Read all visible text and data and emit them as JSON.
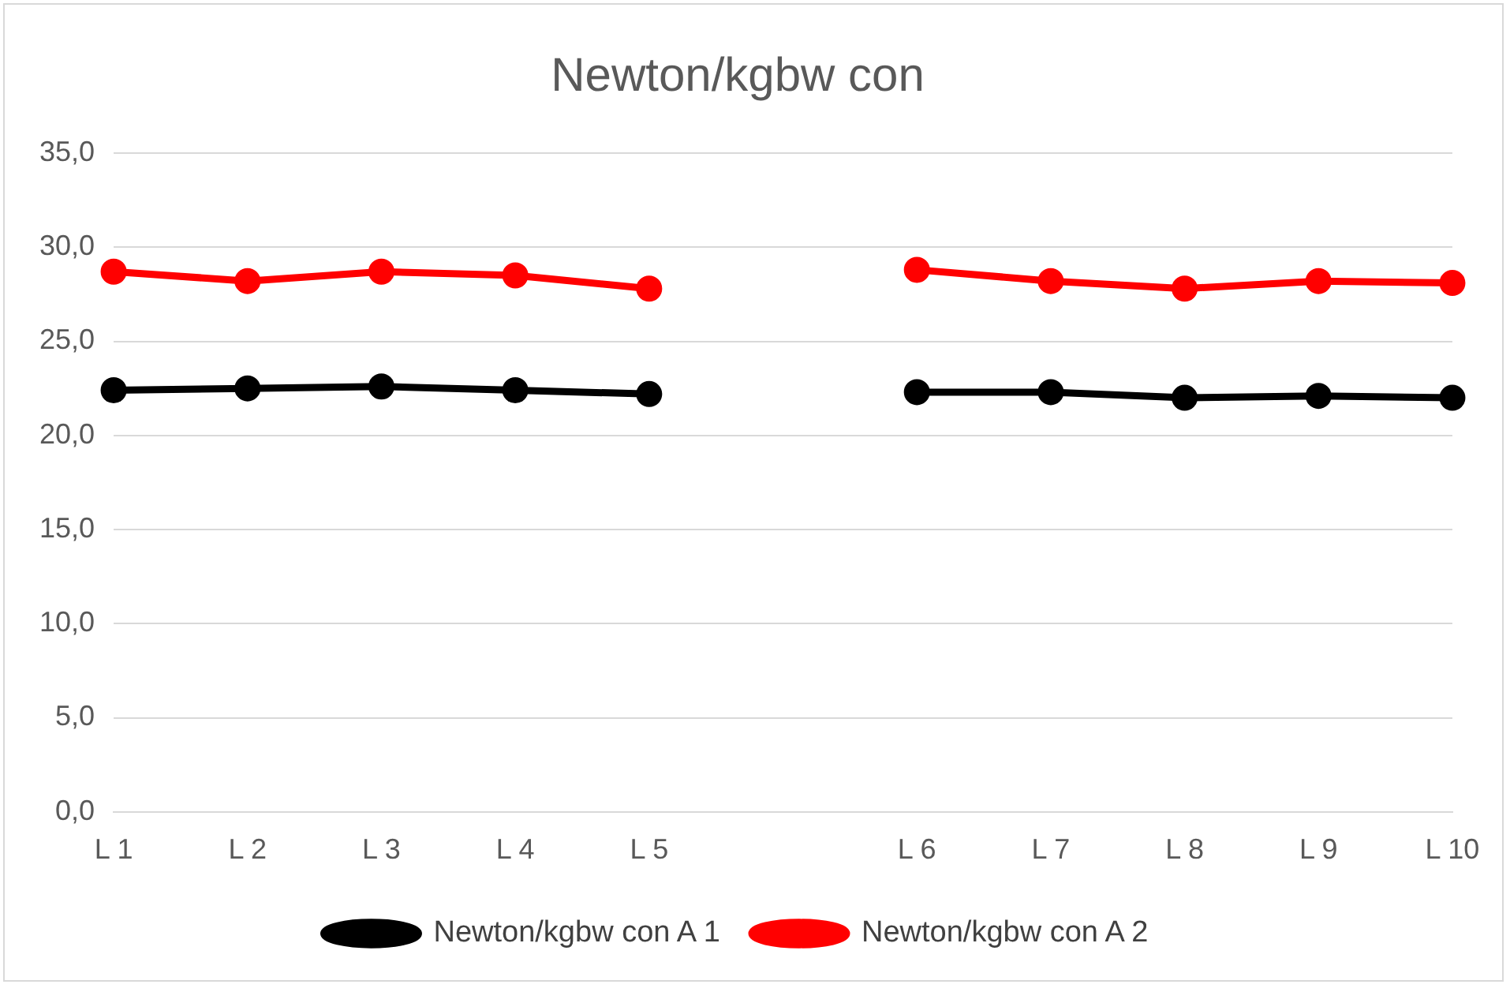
{
  "chart_data": {
    "type": "line",
    "title": "Newton/kgbw con",
    "categories": [
      "L 1",
      "L 2",
      "L 3",
      "L 4",
      "L 5",
      null,
      "L 6",
      "L 7",
      "L 8",
      "L 9",
      "L 10"
    ],
    "series": [
      {
        "name": "Newton/kgbw con A 1",
        "color": "#000000",
        "values": [
          22.4,
          22.5,
          22.6,
          22.4,
          22.2,
          null,
          22.3,
          22.3,
          22.0,
          22.1,
          22.0
        ]
      },
      {
        "name": "Newton/kgbw con A 2",
        "color": "#ff0000",
        "values": [
          28.7,
          28.2,
          28.7,
          28.5,
          27.8,
          null,
          28.8,
          28.2,
          27.8,
          28.2,
          28.1
        ]
      }
    ],
    "ylim": [
      0,
      35
    ],
    "yticks": [
      {
        "value": 0,
        "label": "0,0"
      },
      {
        "value": 5,
        "label": "5,0"
      },
      {
        "value": 10,
        "label": "10,0"
      },
      {
        "value": 15,
        "label": "15,0"
      },
      {
        "value": 20,
        "label": "20,0"
      },
      {
        "value": 25,
        "label": "25,0"
      },
      {
        "value": 30,
        "label": "30,0"
      },
      {
        "value": 35,
        "label": "35,0"
      }
    ],
    "grid": "y",
    "legend": "bottom",
    "marker": "circle",
    "line_style": "solid"
  }
}
